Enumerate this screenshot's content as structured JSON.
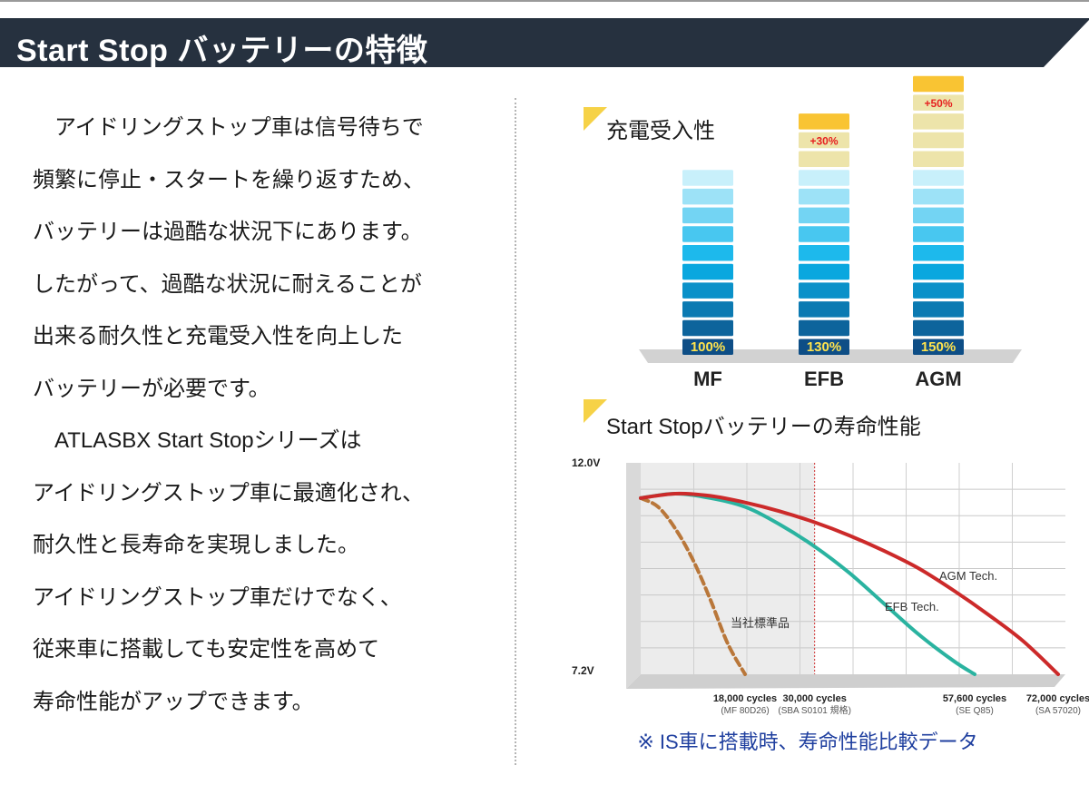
{
  "header": {
    "title": "Start Stop バッテリーの特徴"
  },
  "body_text": [
    "　アイドリングストップ車は信号待ちで",
    "頻繁に停止・スタートを繰り返すため、",
    "バッテリーは過酷な状況下にあります。",
    "したがって、過酷な状況に耐えることが",
    "出来る耐久性と充電受入性を向上した",
    "バッテリーが必要です。",
    "　ATLASBX Start Stopシリーズは",
    "アイドリングストップ車に最適化され、",
    "耐久性と長寿命を実現しました。",
    "アイドリングストップ車だけでなく、",
    "従来車に搭載しても安定性を高めて",
    "寿命性能がアップできます。"
  ],
  "colors": {
    "header_bg": "#26313f",
    "accent_yellow": "#f6d247",
    "bar_bottom": "#0e4e86",
    "bar_mid": "#08b2ea",
    "bar_top": "#c8f0fb",
    "extra_gold": "#f9c433",
    "extra_pale": "#ede4aa",
    "pct_yellow": "#ffe34d",
    "plus_red": "#e62020",
    "line_agm": "#cc2a2a",
    "line_efb": "#2ab3a0",
    "line_std": "#b9773a",
    "caption_blue": "#1f3f9f"
  },
  "chart_data": [
    {
      "type": "bar",
      "title": "充電受入性",
      "categories": [
        "MF",
        "EFB",
        "AGM"
      ],
      "values": [
        100,
        130,
        150
      ],
      "value_labels": [
        "100%",
        "130%",
        "150%"
      ],
      "increase_labels": [
        "",
        "+30%",
        "+50%"
      ],
      "unit": "%",
      "ylim": [
        0,
        150
      ]
    },
    {
      "type": "line",
      "title": "Start Stopバッテリーの寿命性能",
      "xlabel": "",
      "ylabel": "",
      "y_tick_labels": [
        "12.0V",
        "7.2V"
      ],
      "ylim": [
        7.2,
        12.0
      ],
      "xlim": [
        0,
        72000
      ],
      "x_ticks": [
        {
          "x": 18000,
          "label": "18,000 cycles",
          "sub": "(MF 80D26)"
        },
        {
          "x": 30000,
          "label": "30,000 cycles",
          "sub": "(SBA S0101 規格)"
        },
        {
          "x": 57600,
          "label": "57,600 cycles",
          "sub": "(SE Q85)"
        },
        {
          "x": 72000,
          "label": "72,000 cycles",
          "sub": "(SA 57020)"
        }
      ],
      "reference_line_x": 30000,
      "series": [
        {
          "name": "当社標準品",
          "style": "dashed",
          "x": [
            0,
            3000,
            6000,
            9000,
            12000,
            15000,
            18000
          ],
          "y": [
            11.2,
            11.0,
            10.5,
            9.8,
            8.9,
            7.9,
            7.2
          ]
        },
        {
          "name": "EFB Tech.",
          "style": "solid",
          "x": [
            0,
            6000,
            12000,
            18000,
            24000,
            30000,
            36000,
            42000,
            48000,
            54000,
            57600
          ],
          "y": [
            11.2,
            11.3,
            11.2,
            11.0,
            10.6,
            10.1,
            9.5,
            8.8,
            8.1,
            7.5,
            7.2
          ]
        },
        {
          "name": "AGM Tech.",
          "style": "solid",
          "x": [
            0,
            6000,
            12000,
            18000,
            24000,
            30000,
            36000,
            42000,
            48000,
            54000,
            60000,
            66000,
            72000
          ],
          "y": [
            11.2,
            11.3,
            11.25,
            11.1,
            10.9,
            10.65,
            10.35,
            10.0,
            9.6,
            9.1,
            8.55,
            7.95,
            7.2
          ]
        }
      ]
    }
  ],
  "caption": "※ IS車に搭載時、寿命性能比較データ"
}
